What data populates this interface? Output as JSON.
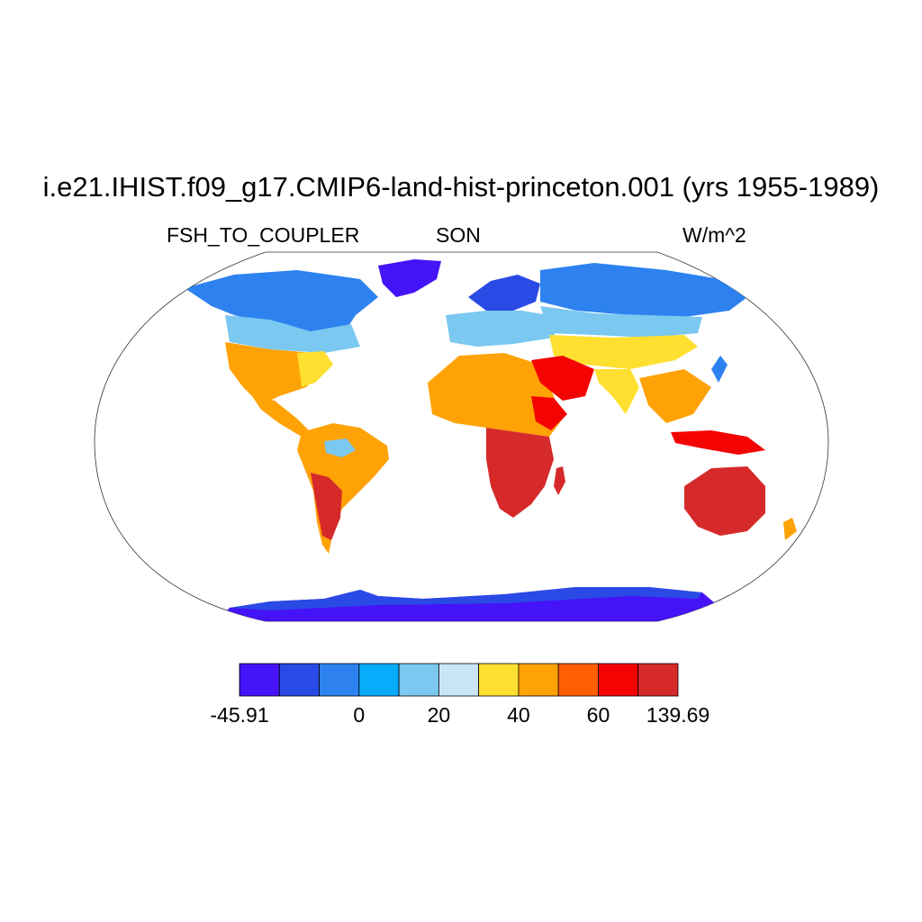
{
  "title": "i.e21.IHIST.f09_g17.CMIP6-land-hist-princeton.001 (yrs 1955-1989)",
  "subtitle_left": "FSH_TO_COUPLER",
  "subtitle_center": "SON",
  "subtitle_right": "W/m^2",
  "colorbar": {
    "colors": [
      "#4513f7",
      "#2a4ae6",
      "#2d82f0",
      "#07acfa",
      "#7bc8f0",
      "#c9e6f8",
      "#ffe031",
      "#ffa205",
      "#ff5f02",
      "#f30403",
      "#d62a2a"
    ],
    "labels": [
      "-45.91",
      "0",
      "20",
      "40",
      "60",
      "139.69"
    ]
  },
  "map": {
    "projection": "Robinson",
    "variable": "FSH_TO_COUPLER",
    "season": "SON",
    "units": "W/m^2"
  }
}
